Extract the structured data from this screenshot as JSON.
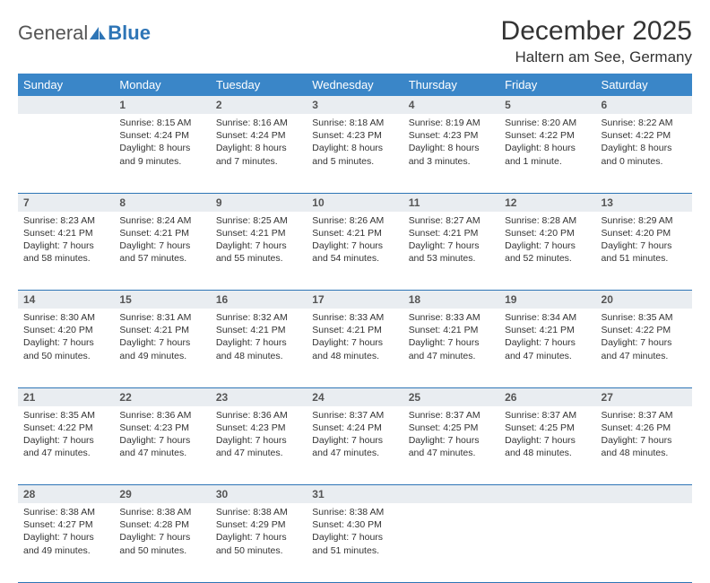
{
  "logo": {
    "text_general": "General",
    "text_blue": "Blue"
  },
  "month_title": "December 2025",
  "location": "Haltern am See, Germany",
  "colors": {
    "header_bg": "#3a86c8",
    "header_text": "#ffffff",
    "daynum_bg": "#e9edf1",
    "border": "#2e75b6",
    "body_text": "#333333"
  },
  "weekdays": [
    "Sunday",
    "Monday",
    "Tuesday",
    "Wednesday",
    "Thursday",
    "Friday",
    "Saturday"
  ],
  "weeks": [
    [
      null,
      {
        "n": "1",
        "sr": "Sunrise: 8:15 AM",
        "ss": "Sunset: 4:24 PM",
        "dl": "Daylight: 8 hours and 9 minutes."
      },
      {
        "n": "2",
        "sr": "Sunrise: 8:16 AM",
        "ss": "Sunset: 4:24 PM",
        "dl": "Daylight: 8 hours and 7 minutes."
      },
      {
        "n": "3",
        "sr": "Sunrise: 8:18 AM",
        "ss": "Sunset: 4:23 PM",
        "dl": "Daylight: 8 hours and 5 minutes."
      },
      {
        "n": "4",
        "sr": "Sunrise: 8:19 AM",
        "ss": "Sunset: 4:23 PM",
        "dl": "Daylight: 8 hours and 3 minutes."
      },
      {
        "n": "5",
        "sr": "Sunrise: 8:20 AM",
        "ss": "Sunset: 4:22 PM",
        "dl": "Daylight: 8 hours and 1 minute."
      },
      {
        "n": "6",
        "sr": "Sunrise: 8:22 AM",
        "ss": "Sunset: 4:22 PM",
        "dl": "Daylight: 8 hours and 0 minutes."
      }
    ],
    [
      {
        "n": "7",
        "sr": "Sunrise: 8:23 AM",
        "ss": "Sunset: 4:21 PM",
        "dl": "Daylight: 7 hours and 58 minutes."
      },
      {
        "n": "8",
        "sr": "Sunrise: 8:24 AM",
        "ss": "Sunset: 4:21 PM",
        "dl": "Daylight: 7 hours and 57 minutes."
      },
      {
        "n": "9",
        "sr": "Sunrise: 8:25 AM",
        "ss": "Sunset: 4:21 PM",
        "dl": "Daylight: 7 hours and 55 minutes."
      },
      {
        "n": "10",
        "sr": "Sunrise: 8:26 AM",
        "ss": "Sunset: 4:21 PM",
        "dl": "Daylight: 7 hours and 54 minutes."
      },
      {
        "n": "11",
        "sr": "Sunrise: 8:27 AM",
        "ss": "Sunset: 4:21 PM",
        "dl": "Daylight: 7 hours and 53 minutes."
      },
      {
        "n": "12",
        "sr": "Sunrise: 8:28 AM",
        "ss": "Sunset: 4:20 PM",
        "dl": "Daylight: 7 hours and 52 minutes."
      },
      {
        "n": "13",
        "sr": "Sunrise: 8:29 AM",
        "ss": "Sunset: 4:20 PM",
        "dl": "Daylight: 7 hours and 51 minutes."
      }
    ],
    [
      {
        "n": "14",
        "sr": "Sunrise: 8:30 AM",
        "ss": "Sunset: 4:20 PM",
        "dl": "Daylight: 7 hours and 50 minutes."
      },
      {
        "n": "15",
        "sr": "Sunrise: 8:31 AM",
        "ss": "Sunset: 4:21 PM",
        "dl": "Daylight: 7 hours and 49 minutes."
      },
      {
        "n": "16",
        "sr": "Sunrise: 8:32 AM",
        "ss": "Sunset: 4:21 PM",
        "dl": "Daylight: 7 hours and 48 minutes."
      },
      {
        "n": "17",
        "sr": "Sunrise: 8:33 AM",
        "ss": "Sunset: 4:21 PM",
        "dl": "Daylight: 7 hours and 48 minutes."
      },
      {
        "n": "18",
        "sr": "Sunrise: 8:33 AM",
        "ss": "Sunset: 4:21 PM",
        "dl": "Daylight: 7 hours and 47 minutes."
      },
      {
        "n": "19",
        "sr": "Sunrise: 8:34 AM",
        "ss": "Sunset: 4:21 PM",
        "dl": "Daylight: 7 hours and 47 minutes."
      },
      {
        "n": "20",
        "sr": "Sunrise: 8:35 AM",
        "ss": "Sunset: 4:22 PM",
        "dl": "Daylight: 7 hours and 47 minutes."
      }
    ],
    [
      {
        "n": "21",
        "sr": "Sunrise: 8:35 AM",
        "ss": "Sunset: 4:22 PM",
        "dl": "Daylight: 7 hours and 47 minutes."
      },
      {
        "n": "22",
        "sr": "Sunrise: 8:36 AM",
        "ss": "Sunset: 4:23 PM",
        "dl": "Daylight: 7 hours and 47 minutes."
      },
      {
        "n": "23",
        "sr": "Sunrise: 8:36 AM",
        "ss": "Sunset: 4:23 PM",
        "dl": "Daylight: 7 hours and 47 minutes."
      },
      {
        "n": "24",
        "sr": "Sunrise: 8:37 AM",
        "ss": "Sunset: 4:24 PM",
        "dl": "Daylight: 7 hours and 47 minutes."
      },
      {
        "n": "25",
        "sr": "Sunrise: 8:37 AM",
        "ss": "Sunset: 4:25 PM",
        "dl": "Daylight: 7 hours and 47 minutes."
      },
      {
        "n": "26",
        "sr": "Sunrise: 8:37 AM",
        "ss": "Sunset: 4:25 PM",
        "dl": "Daylight: 7 hours and 48 minutes."
      },
      {
        "n": "27",
        "sr": "Sunrise: 8:37 AM",
        "ss": "Sunset: 4:26 PM",
        "dl": "Daylight: 7 hours and 48 minutes."
      }
    ],
    [
      {
        "n": "28",
        "sr": "Sunrise: 8:38 AM",
        "ss": "Sunset: 4:27 PM",
        "dl": "Daylight: 7 hours and 49 minutes."
      },
      {
        "n": "29",
        "sr": "Sunrise: 8:38 AM",
        "ss": "Sunset: 4:28 PM",
        "dl": "Daylight: 7 hours and 50 minutes."
      },
      {
        "n": "30",
        "sr": "Sunrise: 8:38 AM",
        "ss": "Sunset: 4:29 PM",
        "dl": "Daylight: 7 hours and 50 minutes."
      },
      {
        "n": "31",
        "sr": "Sunrise: 8:38 AM",
        "ss": "Sunset: 4:30 PM",
        "dl": "Daylight: 7 hours and 51 minutes."
      },
      null,
      null,
      null
    ]
  ]
}
